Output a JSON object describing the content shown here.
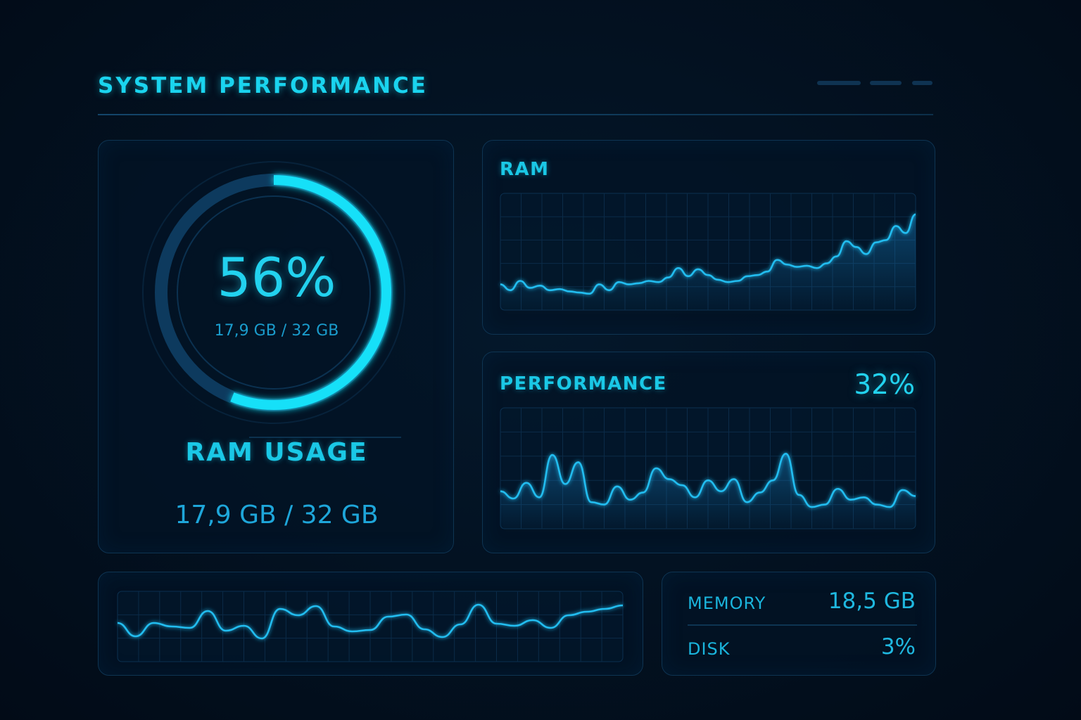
{
  "header": {
    "title": "SYSTEM PERFORMANCE"
  },
  "ram_usage_card": {
    "percent_label": "56%",
    "percent": 56,
    "gauge_detail": "17,9 GB / 32 GB",
    "title": "RAM USAGE",
    "detail": "17,9 GB / 32 GB"
  },
  "ram_chart_card": {
    "title": "RAM"
  },
  "performance_card": {
    "title": "PERFORMANCE",
    "value": "32%"
  },
  "stats_card": {
    "memory_label": "MEMORY",
    "memory_value": "18,5 GB",
    "disk_label": "DISK",
    "disk_value": "3%"
  },
  "colors": {
    "accent": "#1ad4ef",
    "line": "#22b8ec",
    "panel_border": "#0e3452"
  }
}
